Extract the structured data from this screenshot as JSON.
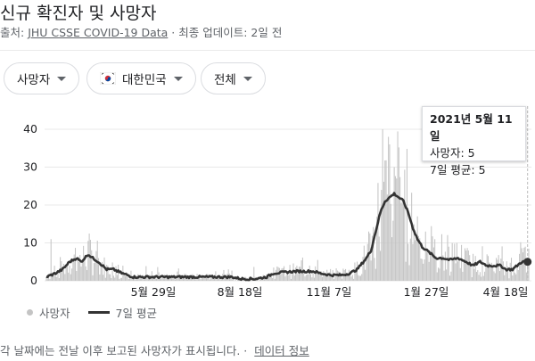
{
  "header": {
    "title": "신규 확진자 및 사망자",
    "source_prefix": "출처: ",
    "source_link": "JHU CSSE COVID-19 Data",
    "source_suffix": " · 최종 업데이트: 2일 전"
  },
  "filters": [
    {
      "label": "사망자"
    },
    {
      "label": "대한민국"
    },
    {
      "label": "전체"
    }
  ],
  "tooltip": {
    "date": "2021년 5월 11일",
    "deaths": "사망자: 5",
    "avg": "7일 평균: 5"
  },
  "legend": {
    "deaths": "사망자",
    "avg": "7일 평균"
  },
  "footnote": {
    "text": "각 날짜에는 전날 이후 보고된 사망자가 표시됩니다.",
    "link": "데이터 정보"
  },
  "colors": {
    "bar": "#c4c4c4",
    "avg_line": "#333333",
    "grid": "#e8e8e8",
    "tooltip_rule": "#bbbbbb"
  },
  "chart_data": {
    "type": "bar",
    "series": [
      {
        "name": "사망자",
        "kind": "bar"
      },
      {
        "name": "7일 평균",
        "kind": "line"
      }
    ],
    "yticks": [
      0,
      10,
      20,
      30,
      40
    ],
    "ylim": [
      0,
      40
    ],
    "xticks": [
      "5월 29일",
      "8월 18일",
      "11월 7일",
      "1월 27일",
      "4월 18일"
    ],
    "avg_anchors": [
      [
        0,
        1
      ],
      [
        8,
        2
      ],
      [
        14,
        3
      ],
      [
        20,
        5
      ],
      [
        26,
        6
      ],
      [
        30,
        5
      ],
      [
        36,
        7
      ],
      [
        40,
        6
      ],
      [
        45,
        5
      ],
      [
        52,
        3
      ],
      [
        58,
        3
      ],
      [
        65,
        2
      ],
      [
        75,
        1
      ],
      [
        110,
        1
      ],
      [
        160,
        1
      ],
      [
        168,
        0.5
      ],
      [
        180,
        0.5
      ],
      [
        190,
        1
      ],
      [
        196,
        2
      ],
      [
        215,
        2.5
      ],
      [
        230,
        2.5
      ],
      [
        236,
        2
      ],
      [
        245,
        1.5
      ],
      [
        255,
        1.5
      ],
      [
        262,
        2
      ],
      [
        268,
        3
      ],
      [
        272,
        4.5
      ],
      [
        276,
        6
      ],
      [
        280,
        8
      ],
      [
        284,
        13
      ],
      [
        288,
        18
      ],
      [
        292,
        21
      ],
      [
        296,
        22
      ],
      [
        300,
        23
      ],
      [
        304,
        22
      ],
      [
        308,
        21
      ],
      [
        312,
        18
      ],
      [
        316,
        14
      ],
      [
        320,
        11
      ],
      [
        324,
        9
      ],
      [
        328,
        8
      ],
      [
        332,
        7
      ],
      [
        336,
        6
      ],
      [
        342,
        6
      ],
      [
        348,
        5.5
      ],
      [
        355,
        6
      ],
      [
        362,
        5
      ],
      [
        368,
        4
      ],
      [
        374,
        5
      ],
      [
        380,
        4
      ],
      [
        385,
        4
      ],
      [
        392,
        4
      ],
      [
        396,
        3
      ],
      [
        402,
        3
      ],
      [
        406,
        4
      ],
      [
        410,
        5
      ],
      [
        416,
        5
      ]
    ],
    "spikes": [
      [
        4,
        11
      ],
      [
        278,
        13
      ],
      [
        289,
        24
      ],
      [
        290,
        40
      ],
      [
        295,
        38
      ],
      [
        296,
        36
      ],
      [
        300,
        30
      ],
      [
        302,
        27
      ],
      [
        320,
        17
      ],
      [
        327,
        13
      ],
      [
        413,
        9
      ]
    ],
    "n_days": 417,
    "highlight_day": 415,
    "highlight_value": 5
  }
}
